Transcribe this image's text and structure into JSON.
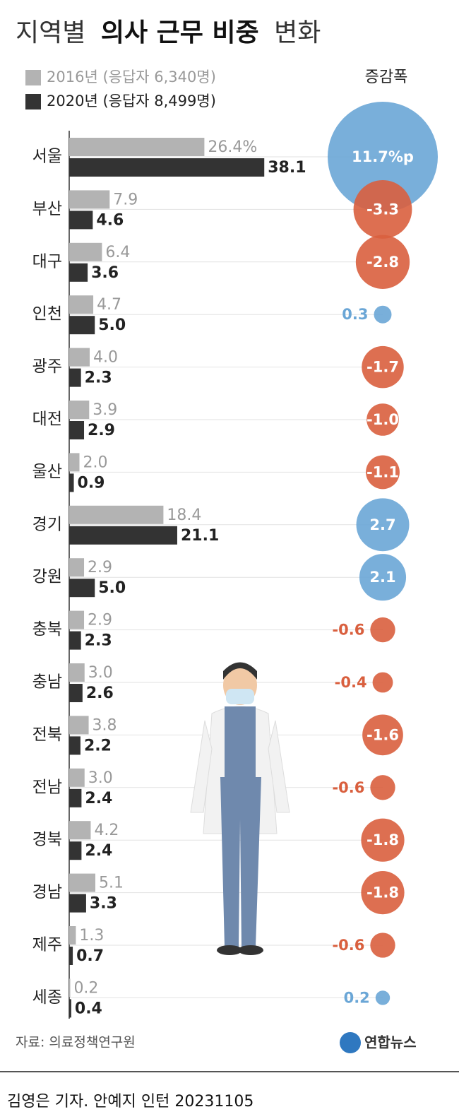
{
  "chart_data": {
    "type": "bar",
    "orientation": "horizontal",
    "title_parts": [
      "지역별",
      "의사 근무 비중",
      "변화"
    ],
    "categories": [
      "서울",
      "부산",
      "대구",
      "인천",
      "광주",
      "대전",
      "울산",
      "경기",
      "강원",
      "충북",
      "충남",
      "전북",
      "전남",
      "경북",
      "경남",
      "제주",
      "세종"
    ],
    "series": [
      {
        "name": "2016년 (응답자 6,340명)",
        "color": "#b3b3b3",
        "label_color": "#999999",
        "values": [
          26.4,
          7.9,
          6.4,
          4.7,
          4.0,
          3.9,
          2.0,
          18.4,
          2.9,
          2.9,
          3.0,
          3.8,
          3.0,
          4.2,
          5.1,
          1.3,
          0.2
        ],
        "value_labels": [
          "26.4%",
          "7.9",
          "6.4",
          "4.7",
          "4.0",
          "3.9",
          "2.0",
          "18.4",
          "2.9",
          "2.9",
          "3.0",
          "3.8",
          "3.0",
          "4.2",
          "5.1",
          "1.3",
          "0.2"
        ]
      },
      {
        "name": "2020년 (응답자 8,499명)",
        "color": "#333333",
        "label_color": "#222222",
        "values": [
          38.1,
          4.6,
          3.6,
          5.0,
          2.3,
          2.9,
          0.9,
          21.1,
          5.0,
          2.3,
          2.6,
          2.2,
          2.4,
          2.4,
          3.3,
          0.7,
          0.4
        ],
        "value_labels": [
          "38.1",
          "4.6",
          "3.6",
          "5.0",
          "2.3",
          "2.9",
          "0.9",
          "21.1",
          "5.0",
          "2.3",
          "2.6",
          "2.2",
          "2.4",
          "2.4",
          "3.3",
          "0.7",
          "0.4"
        ]
      }
    ],
    "xlim": [
      0,
      40
    ],
    "change": {
      "title": "증감폭",
      "positive_color": "#6aa6d6",
      "negative_color": "#d95f3e",
      "values": [
        11.7,
        -3.3,
        -2.8,
        0.3,
        -1.7,
        -1.0,
        -1.1,
        2.7,
        2.1,
        -0.6,
        -0.4,
        -1.6,
        -0.6,
        -1.8,
        -1.8,
        -0.6,
        0.2
      ],
      "value_labels": [
        "11.7%p",
        "-3.3",
        "-2.8",
        "0.3",
        "-1.7",
        "-1.0",
        "-1.1",
        "2.7",
        "2.1",
        "-0.6",
        "-0.4",
        "-1.6",
        "-0.6",
        "-1.8",
        "-1.8",
        "-0.6",
        "0.2"
      ]
    },
    "source": "자료: 의료정책연구원",
    "logo": "연합뉴스",
    "credit": "김영은 기자. 안예지 인턴  20231105"
  }
}
